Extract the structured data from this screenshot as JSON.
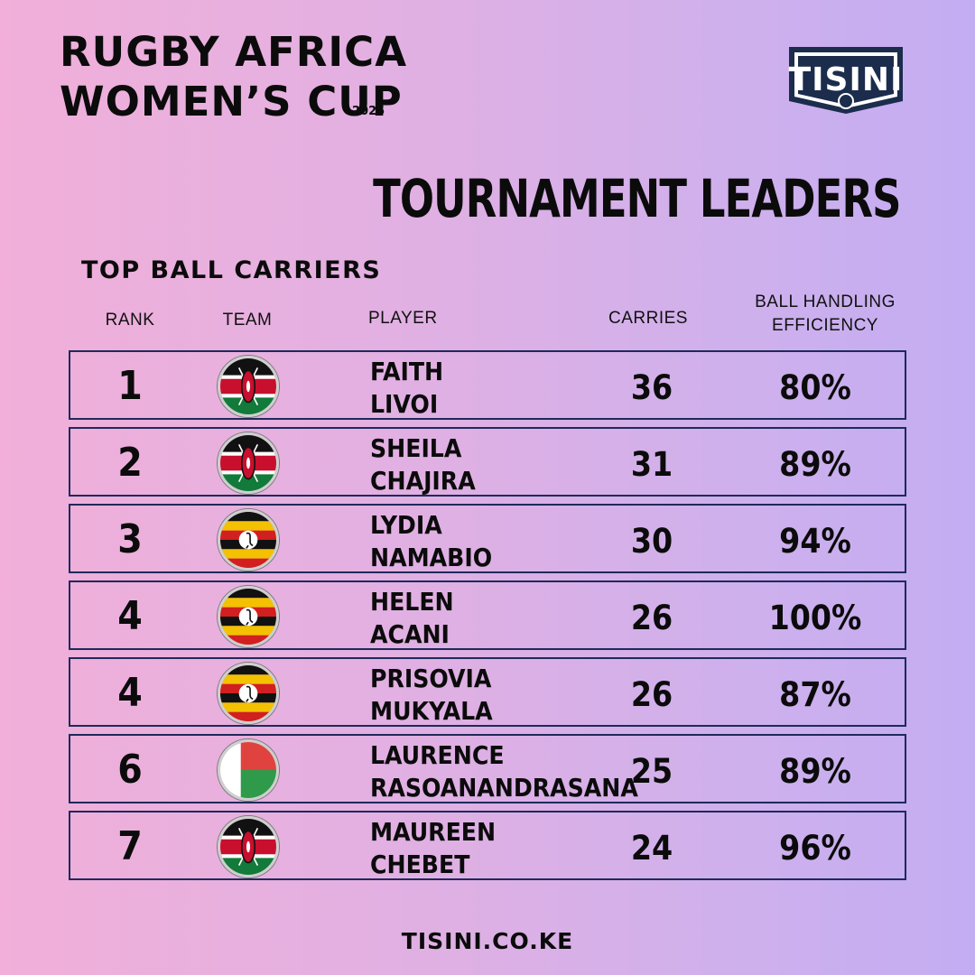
{
  "header": {
    "title_line1": "RUGBY AFRICA",
    "title_line2": "WOMEN’S CUP",
    "year": "2025",
    "logo_text": "TISINI",
    "headline": "TOURNAMENT LEADERS",
    "subhead": "TOP BALL CARRIERS"
  },
  "columns": {
    "rank": "RANK",
    "team": "TEAM",
    "player": "PLAYER",
    "carries": "CARRIES",
    "efficiency_line1": "BALL HANDLING",
    "efficiency_line2": "EFFICIENCY"
  },
  "rows": [
    {
      "rank": "1",
      "team": "kenya-flag-icon",
      "first": "FAITH",
      "last": "LIVOI",
      "carries": "36",
      "efficiency": "80%"
    },
    {
      "rank": "2",
      "team": "kenya-flag-icon",
      "first": "SHEILA",
      "last": "CHAJIRA",
      "carries": "31",
      "efficiency": "89%"
    },
    {
      "rank": "3",
      "team": "uganda-flag-icon",
      "first": "LYDIA",
      "last": "NAMABIO",
      "carries": "30",
      "efficiency": "94%"
    },
    {
      "rank": "4",
      "team": "uganda-flag-icon",
      "first": "HELEN",
      "last": "ACANI",
      "carries": "26",
      "efficiency": "100%"
    },
    {
      "rank": "4",
      "team": "uganda-flag-icon",
      "first": "PRISOVIA",
      "last": "MUKYALA",
      "carries": "26",
      "efficiency": "87%"
    },
    {
      "rank": "6",
      "team": "madagascar-flag-icon",
      "first": "LAURENCE",
      "last": "RASOANANDRASANA",
      "carries": "25",
      "efficiency": "89%"
    },
    {
      "rank": "7",
      "team": "kenya-flag-icon",
      "first": "MAUREEN",
      "last": "CHEBET",
      "carries": "24",
      "efficiency": "96%"
    }
  ],
  "footer": "TISINI.CO.KE",
  "colors": {
    "row_border": "#1e2a5a",
    "logo_navy": "#1b2c4d"
  }
}
